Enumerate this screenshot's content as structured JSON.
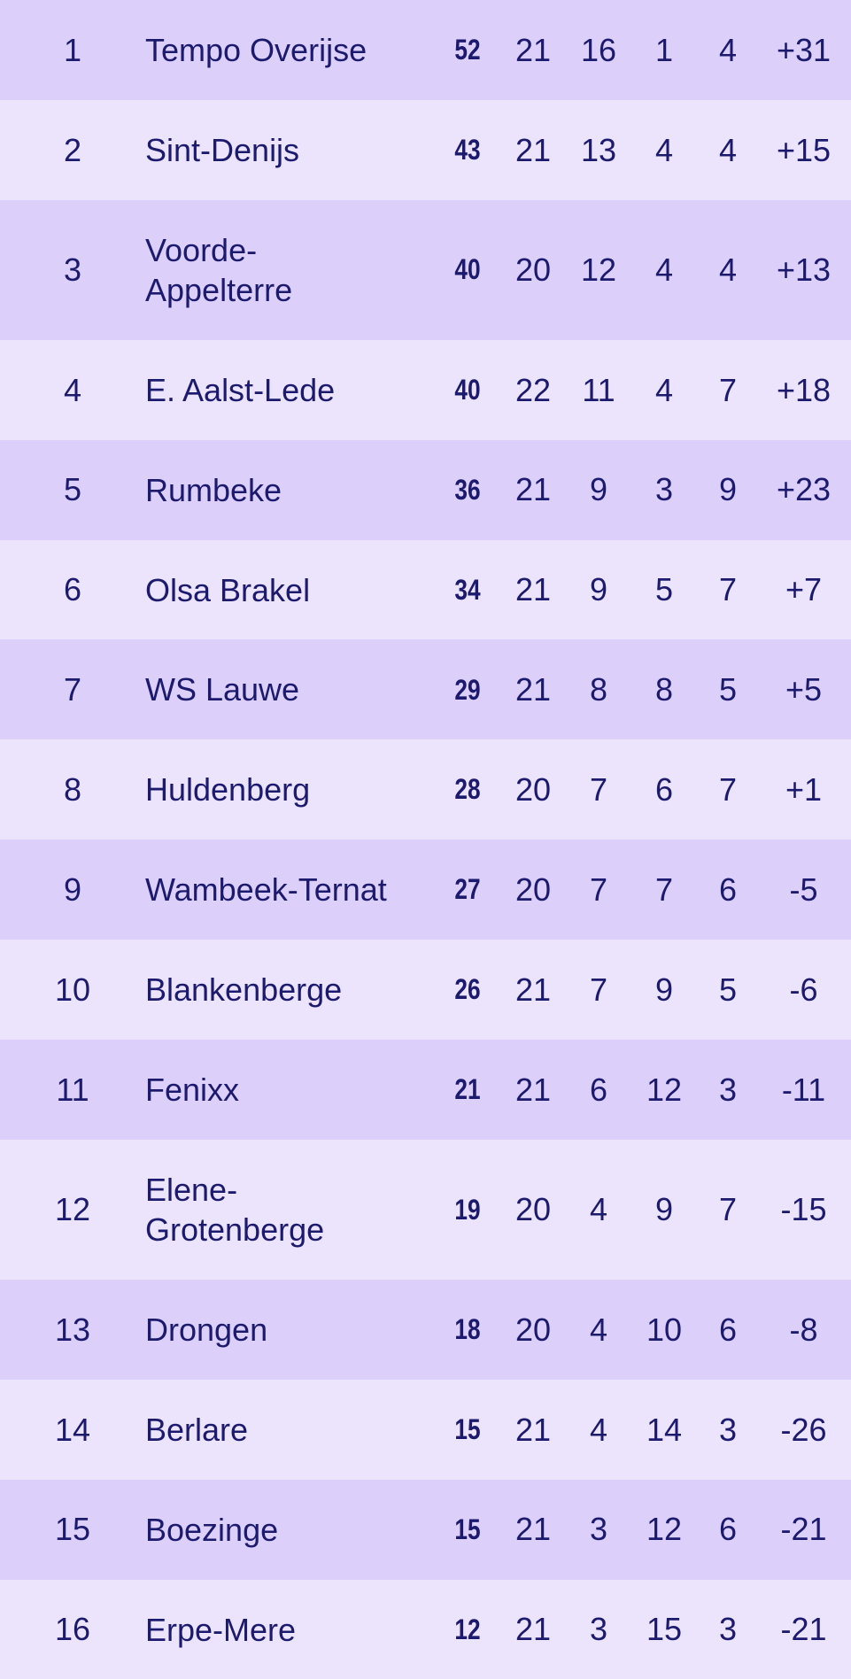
{
  "standings": [
    {
      "rank": "1",
      "team": "Tempo Overijse",
      "points": "52",
      "played": "21",
      "won": "16",
      "lost": "1",
      "drawn": "4",
      "goal_diff": "+31"
    },
    {
      "rank": "2",
      "team": "Sint-Denijs",
      "points": "43",
      "played": "21",
      "won": "13",
      "lost": "4",
      "drawn": "4",
      "goal_diff": "+15"
    },
    {
      "rank": "3",
      "team": "Voorde-Appelterre",
      "points": "40",
      "played": "20",
      "won": "12",
      "lost": "4",
      "drawn": "4",
      "goal_diff": "+13"
    },
    {
      "rank": "4",
      "team": "E. Aalst-Lede",
      "points": "40",
      "played": "22",
      "won": "11",
      "lost": "4",
      "drawn": "7",
      "goal_diff": "+18"
    },
    {
      "rank": "5",
      "team": "Rumbeke",
      "points": "36",
      "played": "21",
      "won": "9",
      "lost": "3",
      "drawn": "9",
      "goal_diff": "+23"
    },
    {
      "rank": "6",
      "team": "Olsa Brakel",
      "points": "34",
      "played": "21",
      "won": "9",
      "lost": "5",
      "drawn": "7",
      "goal_diff": "+7"
    },
    {
      "rank": "7",
      "team": "WS Lauwe",
      "points": "29",
      "played": "21",
      "won": "8",
      "lost": "8",
      "drawn": "5",
      "goal_diff": "+5"
    },
    {
      "rank": "8",
      "team": "Huldenberg",
      "points": "28",
      "played": "20",
      "won": "7",
      "lost": "6",
      "drawn": "7",
      "goal_diff": "+1"
    },
    {
      "rank": "9",
      "team": "Wambeek-Ternat",
      "points": "27",
      "played": "20",
      "won": "7",
      "lost": "7",
      "drawn": "6",
      "goal_diff": "-5"
    },
    {
      "rank": "10",
      "team": "Blankenberge",
      "points": "26",
      "played": "21",
      "won": "7",
      "lost": "9",
      "drawn": "5",
      "goal_diff": "-6"
    },
    {
      "rank": "11",
      "team": "Fenixx",
      "points": "21",
      "played": "21",
      "won": "6",
      "lost": "12",
      "drawn": "3",
      "goal_diff": "-11"
    },
    {
      "rank": "12",
      "team": "Elene-Grotenberge",
      "points": "19",
      "played": "20",
      "won": "4",
      "lost": "9",
      "drawn": "7",
      "goal_diff": "-15"
    },
    {
      "rank": "13",
      "team": "Drongen",
      "points": "18",
      "played": "20",
      "won": "4",
      "lost": "10",
      "drawn": "6",
      "goal_diff": "-8"
    },
    {
      "rank": "14",
      "team": "Berlare",
      "points": "15",
      "played": "21",
      "won": "4",
      "lost": "14",
      "drawn": "3",
      "goal_diff": "-26"
    },
    {
      "rank": "15",
      "team": "Boezinge",
      "points": "15",
      "played": "21",
      "won": "3",
      "lost": "12",
      "drawn": "6",
      "goal_diff": "-21"
    },
    {
      "rank": "16",
      "team": "Erpe-Mere",
      "points": "12",
      "played": "21",
      "won": "3",
      "lost": "15",
      "drawn": "3",
      "goal_diff": "-21"
    }
  ],
  "colors": {
    "row_odd": "#dcd0fa",
    "row_even": "#ece4fc",
    "text": "#1c1a6e"
  }
}
